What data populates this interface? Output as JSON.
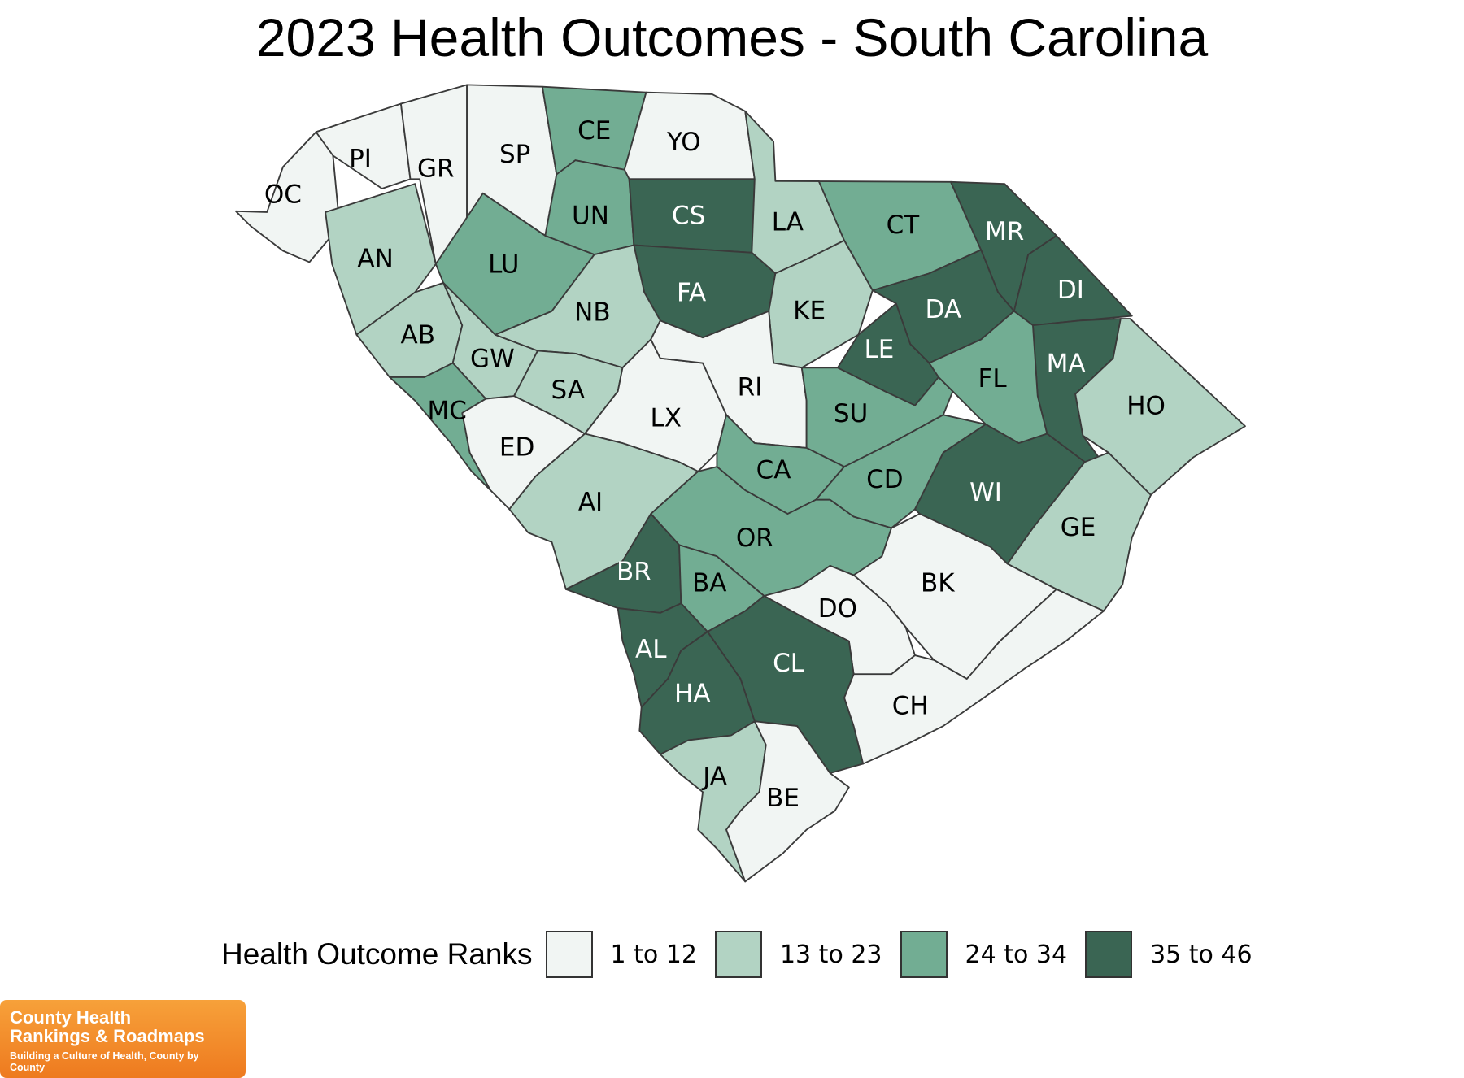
{
  "title": "2023 Health Outcomes - South Carolina",
  "colors": {
    "1 to 12": "#f1f5f3",
    "13 to 23": "#b2d3c3",
    "24 to 34": "#72ad93",
    "35 to 46": "#3a6553",
    "label_light": "#000000",
    "label_dark": "#ffffff",
    "logo_orange": "#f08a28"
  },
  "legend": {
    "title": "Health Outcome Ranks",
    "items": [
      "1 to 12",
      "13 to 23",
      "24 to 34",
      "35 to 46"
    ]
  },
  "counties": [
    {
      "abbr": "OC",
      "rank_group": "1 to 12"
    },
    {
      "abbr": "PI",
      "rank_group": "1 to 12"
    },
    {
      "abbr": "GR",
      "rank_group": "1 to 12"
    },
    {
      "abbr": "SP",
      "rank_group": "1 to 12"
    },
    {
      "abbr": "CE",
      "rank_group": "24 to 34"
    },
    {
      "abbr": "YO",
      "rank_group": "1 to 12"
    },
    {
      "abbr": "UN",
      "rank_group": "24 to 34"
    },
    {
      "abbr": "CS",
      "rank_group": "35 to 46"
    },
    {
      "abbr": "LA",
      "rank_group": "13 to 23"
    },
    {
      "abbr": "CT",
      "rank_group": "24 to 34"
    },
    {
      "abbr": "MR",
      "rank_group": "35 to 46"
    },
    {
      "abbr": "AN",
      "rank_group": "13 to 23"
    },
    {
      "abbr": "LU",
      "rank_group": "24 to 34"
    },
    {
      "abbr": "FA",
      "rank_group": "35 to 46"
    },
    {
      "abbr": "KE",
      "rank_group": "13 to 23"
    },
    {
      "abbr": "DA",
      "rank_group": "35 to 46"
    },
    {
      "abbr": "DI",
      "rank_group": "35 to 46"
    },
    {
      "abbr": "AB",
      "rank_group": "13 to 23"
    },
    {
      "abbr": "GW",
      "rank_group": "13 to 23"
    },
    {
      "abbr": "NB",
      "rank_group": "13 to 23"
    },
    {
      "abbr": "LE",
      "rank_group": "35 to 46"
    },
    {
      "abbr": "MA",
      "rank_group": "35 to 46"
    },
    {
      "abbr": "MC",
      "rank_group": "24 to 34"
    },
    {
      "abbr": "SA",
      "rank_group": "13 to 23"
    },
    {
      "abbr": "LX",
      "rank_group": "1 to 12"
    },
    {
      "abbr": "RI",
      "rank_group": "1 to 12"
    },
    {
      "abbr": "SU",
      "rank_group": "24 to 34"
    },
    {
      "abbr": "FL",
      "rank_group": "24 to 34"
    },
    {
      "abbr": "HO",
      "rank_group": "13 to 23"
    },
    {
      "abbr": "ED",
      "rank_group": "1 to 12"
    },
    {
      "abbr": "AI",
      "rank_group": "13 to 23"
    },
    {
      "abbr": "CA",
      "rank_group": "24 to 34"
    },
    {
      "abbr": "CD",
      "rank_group": "24 to 34"
    },
    {
      "abbr": "WI",
      "rank_group": "35 to 46"
    },
    {
      "abbr": "GE",
      "rank_group": "13 to 23"
    },
    {
      "abbr": "OR",
      "rank_group": "24 to 34"
    },
    {
      "abbr": "BR",
      "rank_group": "35 to 46"
    },
    {
      "abbr": "BA",
      "rank_group": "24 to 34"
    },
    {
      "abbr": "BK",
      "rank_group": "1 to 12"
    },
    {
      "abbr": "DO",
      "rank_group": "1 to 12"
    },
    {
      "abbr": "AL",
      "rank_group": "35 to 46"
    },
    {
      "abbr": "CL",
      "rank_group": "35 to 46"
    },
    {
      "abbr": "HA",
      "rank_group": "35 to 46"
    },
    {
      "abbr": "CH",
      "rank_group": "1 to 12"
    },
    {
      "abbr": "JA",
      "rank_group": "13 to 23"
    },
    {
      "abbr": "BE",
      "rank_group": "1 to 12"
    }
  ],
  "logo": {
    "line1": "County Health",
    "line2": "Rankings & Roadmaps",
    "tagline": "Building a Culture of Health, County by County"
  }
}
